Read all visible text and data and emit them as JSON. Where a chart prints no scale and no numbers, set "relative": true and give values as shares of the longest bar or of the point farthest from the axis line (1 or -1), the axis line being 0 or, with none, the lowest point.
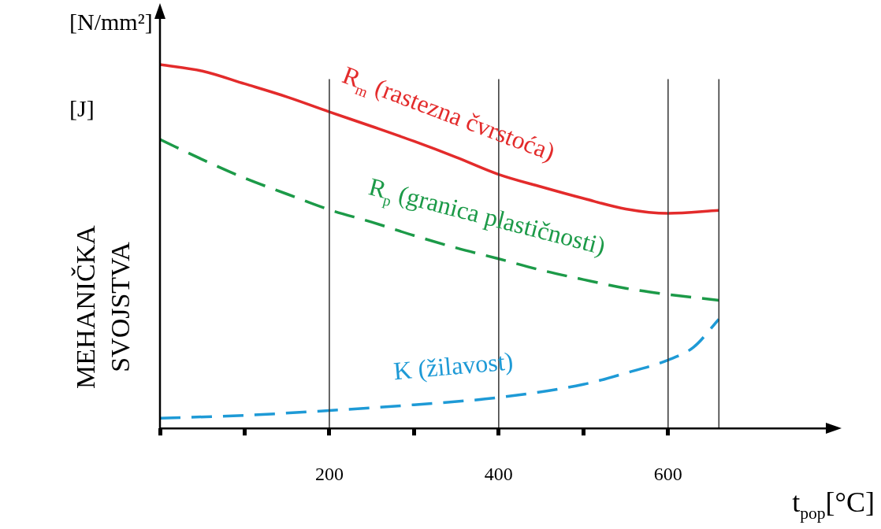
{
  "chart_data": {
    "type": "line",
    "relative": true,
    "xlabel": "t$_{pop}$[°C]",
    "ylabel": "MEHANIČKA SVOJSTVA",
    "annotations": [
      "[N/mm²]",
      "[J]"
    ],
    "x": [
      0,
      50,
      100,
      150,
      200,
      250,
      300,
      350,
      400,
      450,
      500,
      550,
      600,
      660
    ],
    "xlim": [
      0,
      790
    ],
    "xticks": [
      {
        "value": 0,
        "label": null
      },
      {
        "value": 100,
        "label": null
      },
      200,
      {
        "value": 300,
        "label": null
      },
      400,
      {
        "value": 500,
        "label": null
      },
      600
    ],
    "grid": false,
    "legend": false,
    "marker": "none",
    "ref_lines": [
      {
        "axis": "x",
        "value": 200,
        "color": "#333333"
      },
      {
        "axis": "x",
        "value": 400,
        "color": "#333333"
      },
      {
        "axis": "x",
        "value": 600,
        "color": "#333333"
      },
      {
        "axis": "x",
        "value": 660,
        "color": "#333333"
      }
    ],
    "series": [
      {
        "name": "R$_{m}$ (rastezna čvrstoća)",
        "color": "#e32b2b",
        "line_style": "solid",
        "values": [
          1,
          0.982,
          0.947,
          0.911,
          0.87,
          0.83,
          0.789,
          0.745,
          0.698,
          0.664,
          0.632,
          0.603,
          0.591,
          0.599
        ]
      },
      {
        "name": "R$_{p}$ (granica plastičnosti)",
        "color": "#1c9a48",
        "line_style": "dashed",
        "values": [
          0.794,
          0.739,
          0.688,
          0.644,
          0.601,
          0.567,
          0.53,
          0.496,
          0.466,
          0.435,
          0.409,
          0.385,
          0.368,
          0.352
        ]
      },
      {
        "name": "K (žilavost)",
        "color": "#1e9ad6",
        "line_style": "dashed",
        "x": [
          0,
          100,
          200,
          300,
          400,
          500,
          550,
          600,
          630,
          660
        ],
        "values": [
          0.028,
          0.036,
          0.049,
          0.065,
          0.085,
          0.121,
          0.152,
          0.188,
          0.223,
          0.3
        ]
      }
    ]
  }
}
